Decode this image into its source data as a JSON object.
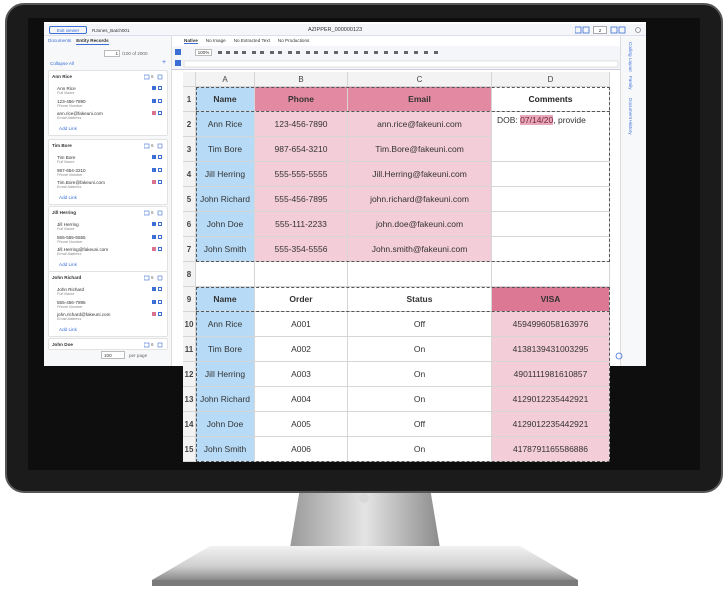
{
  "top_bar": {
    "exit_viewer": "Exit viewer",
    "batch_name": "RJones_Batch001",
    "document_id": "AZIPPER_000000123",
    "page": "2"
  },
  "left_panel": {
    "tabs": [
      "Documents",
      "Entity Records"
    ],
    "record_index": "1",
    "record_total": "/100 of 2000",
    "collapse_all": "Collapse All",
    "entities": [
      {
        "name": "Ann Rice",
        "count": "6",
        "fields": [
          {
            "value": "Ann Rice",
            "label": "Full Name"
          },
          {
            "value": "123-456-7890",
            "label": "Phone Number"
          },
          {
            "value": "ann.rice@fakeuni.com",
            "label": "Email Address"
          }
        ],
        "add_link": "Add Link"
      },
      {
        "name": "Tim Bore",
        "count": "6",
        "fields": [
          {
            "value": "Tim Bore",
            "label": "Full Name"
          },
          {
            "value": "987-654-3210",
            "label": "Phone Number"
          },
          {
            "value": "Tim.Bore@fakeuni.com",
            "label": "Email Address"
          }
        ],
        "add_link": "Add Link"
      },
      {
        "name": "Jill Herring",
        "count": "6",
        "fields": [
          {
            "value": "Jill Herring",
            "label": "Full Name"
          },
          {
            "value": "555-555-5555",
            "label": "Phone Number"
          },
          {
            "value": "Jill.Herring@fakeuni.com",
            "label": "Email Address"
          }
        ],
        "add_link": "Add Link"
      },
      {
        "name": "John Richard",
        "count": "6",
        "fields": [
          {
            "value": "John Richard",
            "label": "Full Name"
          },
          {
            "value": "555-456-7895",
            "label": "Phone Number"
          },
          {
            "value": "john.richard@fakeuni.com",
            "label": "Email Address"
          }
        ],
        "add_link": "Add Link"
      },
      {
        "name": "John Doe",
        "count": "6"
      }
    ],
    "per_page": "100",
    "per_page_label": "per page"
  },
  "view_tabs": [
    "Native",
    "No Image",
    "No Extracted Text",
    "No Productions"
  ],
  "zoom": "100%",
  "right_tabs": [
    "Coding Layout",
    "Family",
    "Document History"
  ],
  "sheet": {
    "columns": [
      "A",
      "B",
      "C",
      "D"
    ],
    "row_numbers": [
      1,
      2,
      3,
      4,
      5,
      6,
      7,
      8,
      9,
      10,
      11,
      12,
      13,
      14,
      15
    ],
    "table1": {
      "header": [
        "Name",
        "Phone",
        "Email",
        "Comments"
      ],
      "rows": [
        [
          "Ann Rice",
          "123-456-7890",
          "ann.rice@fakeuni.com"
        ],
        [
          "Tim Bore",
          "987-654-3210",
          "Tim.Bore@fakeuni.com"
        ],
        [
          "Jill Herring",
          "555-555-5555",
          "Jill.Herring@fakeuni.com"
        ],
        [
          "John Richard",
          "555-456-7895",
          "john.richard@fakeuni.com"
        ],
        [
          "John Doe",
          "555-111-2233",
          "john.doe@fakeuni.com"
        ],
        [
          "John Smith",
          "555-354-5556",
          "John.smith@fakeuni.com"
        ]
      ],
      "comment": {
        "prefix": "DOB: ",
        "highlight": "07/14/20",
        "suffix": ", provide"
      }
    },
    "table2": {
      "header": [
        "Name",
        "Order",
        "Status",
        "VISA"
      ],
      "rows": [
        [
          "Ann Rice",
          "A001",
          "Off",
          "4594996058163976"
        ],
        [
          "Tim Bore",
          "A002",
          "On",
          "4138139431003295"
        ],
        [
          "Jill Herring",
          "A003",
          "On",
          "4901111981610857"
        ],
        [
          "John Richard",
          "A004",
          "On",
          "4129012235442921"
        ],
        [
          "John Doe",
          "A005",
          "Off",
          "4129012235442921"
        ],
        [
          "John Smith",
          "A006",
          "On",
          "4178791165586886"
        ]
      ]
    }
  }
}
